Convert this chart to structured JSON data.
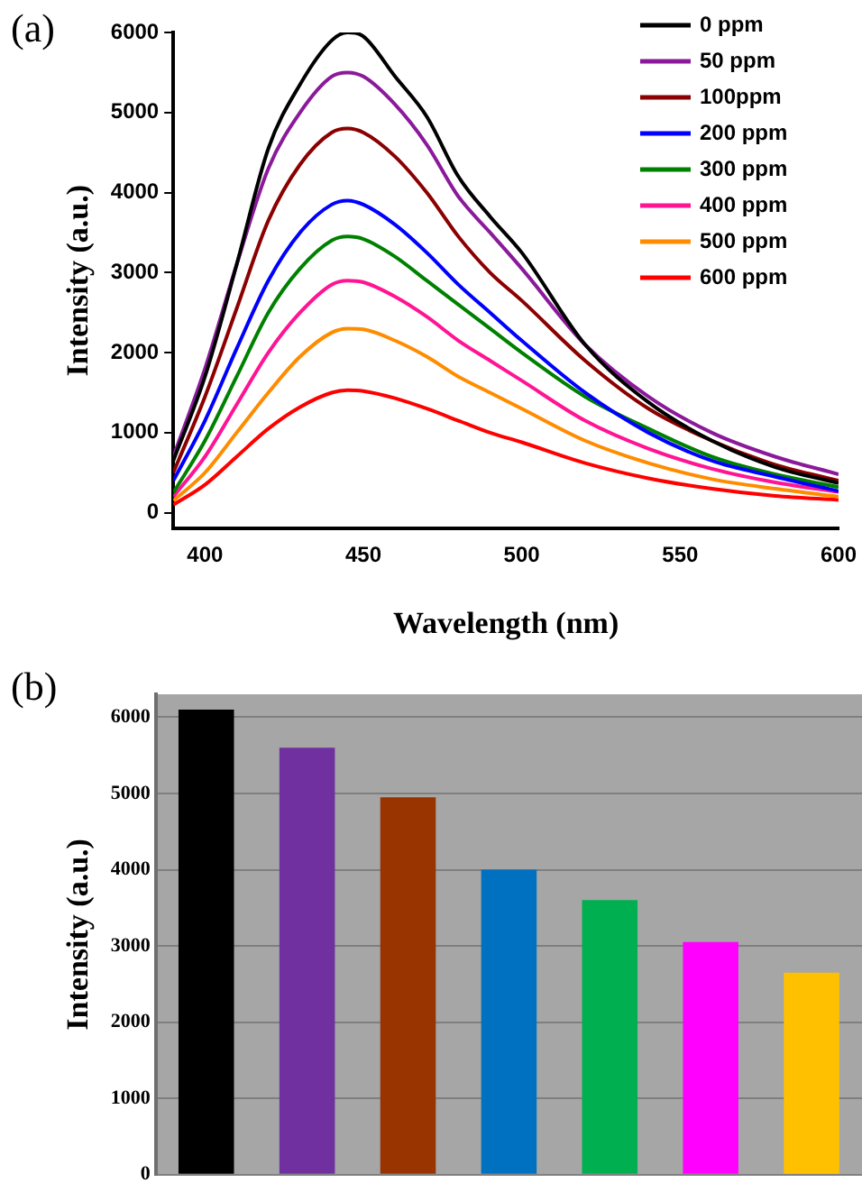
{
  "chart_data": [
    {
      "type": "line",
      "annotations": [
        "(a)"
      ],
      "xlabel": "Wavelength (nm)",
      "ylabel": "Intensity (a.u.)",
      "xlim": [
        390,
        600
      ],
      "xticks": [
        400,
        450,
        500,
        550,
        600
      ],
      "ylim": [
        -200,
        6000
      ],
      "yticks": [
        0,
        1000,
        2000,
        3000,
        4000,
        5000,
        6000
      ],
      "x": [
        390,
        400,
        410,
        420,
        430,
        440,
        445,
        450,
        460,
        470,
        480,
        490,
        500,
        520,
        540,
        560,
        580,
        600
      ],
      "legend": "top right",
      "marker": "none",
      "line_style": "solid",
      "series": [
        {
          "name": "0 ppm",
          "color": "#000000",
          "values": [
            650,
            1700,
            3100,
            4550,
            5350,
            5900,
            6000,
            5950,
            5450,
            4950,
            4200,
            3700,
            3250,
            2100,
            1380,
            900,
            570,
            370
          ]
        },
        {
          "name": "50 ppm",
          "color": "#8b1a9b",
          "values": [
            700,
            1800,
            3100,
            4300,
            5000,
            5450,
            5500,
            5450,
            5100,
            4600,
            3950,
            3500,
            3050,
            2100,
            1450,
            1000,
            700,
            480
          ]
        },
        {
          "name": "100ppm",
          "color": "#8b0000",
          "values": [
            500,
            1450,
            2550,
            3650,
            4350,
            4750,
            4800,
            4750,
            4450,
            4000,
            3450,
            3000,
            2650,
            1900,
            1300,
            900,
            600,
            400
          ]
        },
        {
          "name": "200 ppm",
          "color": "#0000ff",
          "values": [
            400,
            1150,
            2050,
            2900,
            3500,
            3850,
            3900,
            3850,
            3600,
            3250,
            2850,
            2500,
            2150,
            1500,
            1000,
            650,
            450,
            270
          ]
        },
        {
          "name": "300 ppm",
          "color": "#008000",
          "values": [
            250,
            900,
            1700,
            2500,
            3050,
            3400,
            3450,
            3420,
            3200,
            2900,
            2600,
            2300,
            2000,
            1450,
            1050,
            700,
            480,
            320
          ]
        },
        {
          "name": "400 ppm",
          "color": "#ff1493",
          "values": [
            200,
            700,
            1350,
            2000,
            2500,
            2850,
            2900,
            2880,
            2700,
            2450,
            2150,
            1900,
            1650,
            1150,
            800,
            550,
            380,
            260
          ]
        },
        {
          "name": "500 ppm",
          "color": "#ff8c00",
          "values": [
            150,
            500,
            1000,
            1500,
            1950,
            2250,
            2300,
            2290,
            2150,
            1950,
            1700,
            1500,
            1300,
            900,
            620,
            420,
            300,
            200
          ]
        },
        {
          "name": "600 ppm",
          "color": "#ff0000",
          "values": [
            100,
            350,
            700,
            1050,
            1320,
            1500,
            1530,
            1520,
            1430,
            1300,
            1150,
            1000,
            880,
            620,
            430,
            300,
            210,
            160
          ]
        }
      ]
    },
    {
      "type": "bar",
      "annotations": [
        "(b)"
      ],
      "ylabel": "Intensity (a.u.)",
      "categories": [
        null,
        null,
        null,
        null,
        null,
        null,
        null
      ],
      "values": [
        6100,
        5600,
        4950,
        4000,
        3600,
        3050,
        2650
      ],
      "colors": [
        "#000000",
        "#7030a0",
        "#993300",
        "#0070c0",
        "#00b050",
        "#ff00ff",
        "#ffc000"
      ],
      "ylim": [
        0,
        6300
      ],
      "yticks": [
        0,
        1000,
        2000,
        3000,
        4000,
        5000,
        6000
      ],
      "grid": "y",
      "tick_labels": "y"
    }
  ]
}
